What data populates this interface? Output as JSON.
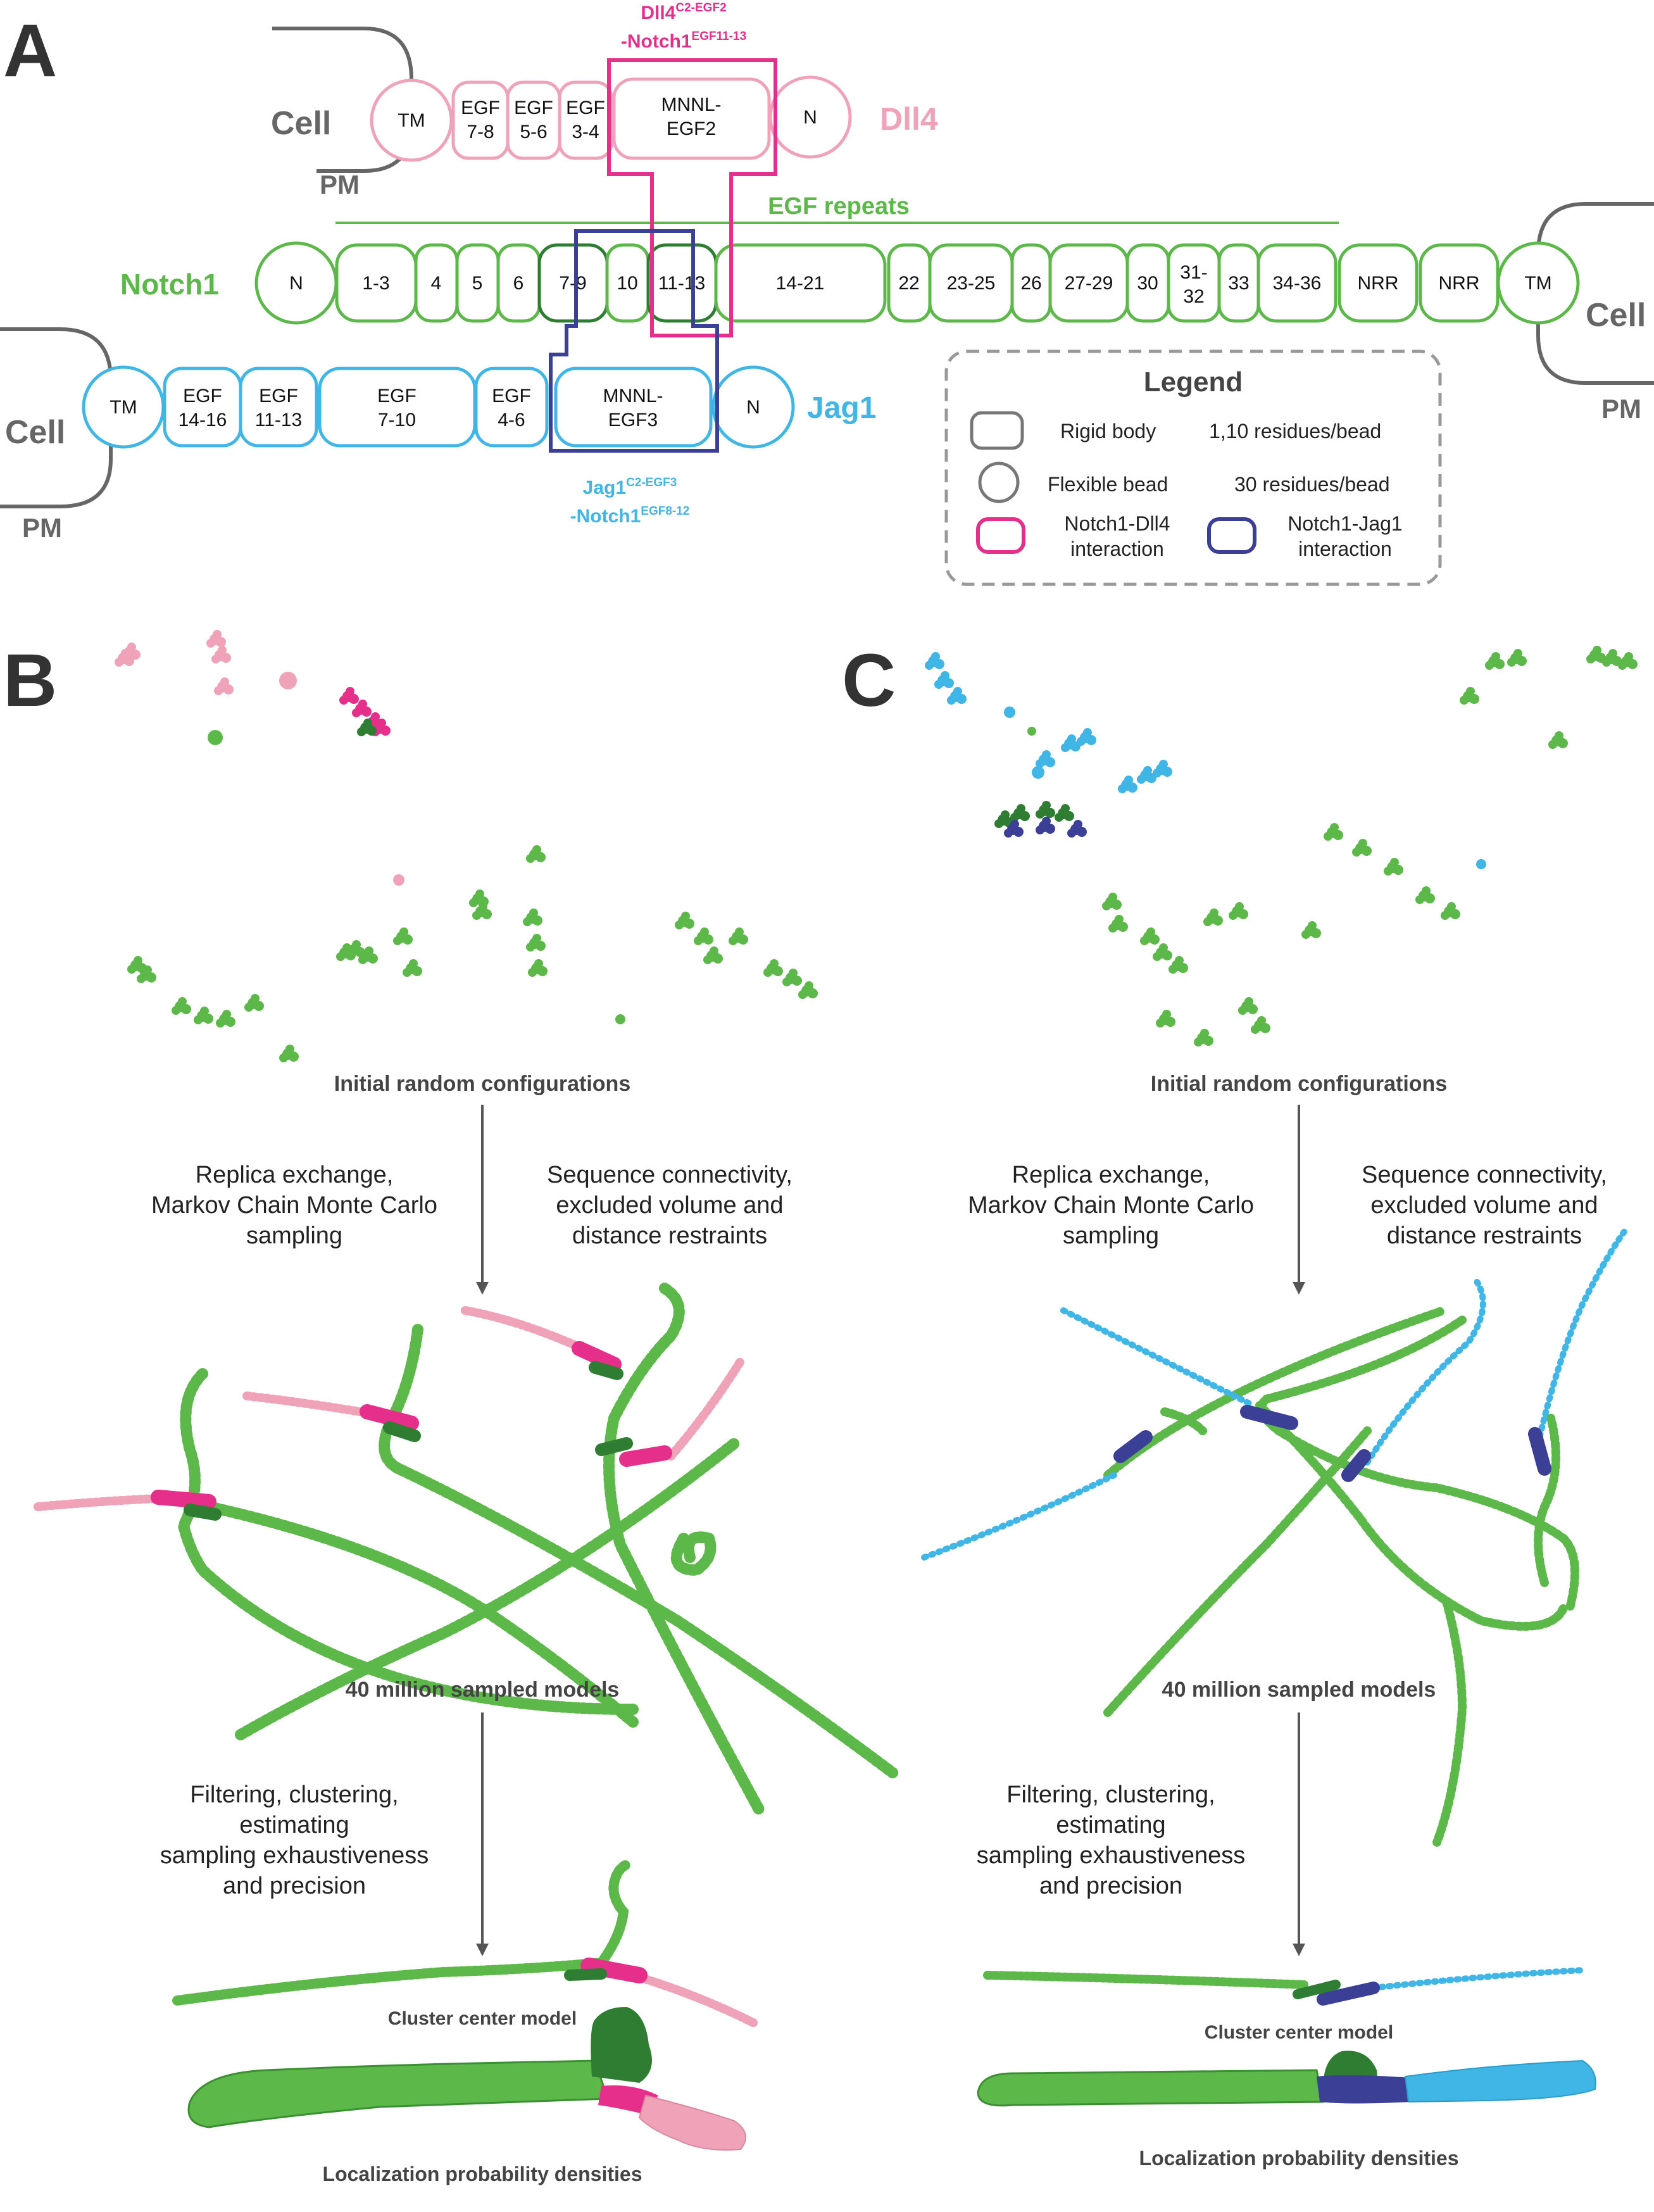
{
  "panels": {
    "a": "A",
    "b": "B",
    "c": "C"
  },
  "colors": {
    "notch": "#5db84a",
    "notch_dark": "#2e7d32",
    "dll4": "#f0a2b8",
    "dll4_dark": "#e62e8b",
    "jag": "#3fb6e6",
    "jag_dark": "#3c3f96",
    "gray": "#666666",
    "legend_dash": "#999999"
  },
  "panel_a": {
    "cell": "Cell",
    "pm": "PM",
    "dll4": {
      "name": "Dll4",
      "domains": [
        "TM",
        "EGF\n7-8",
        "EGF\n5-6",
        "EGF\n3-4",
        "MNNL-\nEGF2",
        "N"
      ]
    },
    "dll4_interaction": {
      "line1": "Dll4",
      "sup1": "C2-EGF2",
      "line2": "-Notch1",
      "sup2": "EGF11-13"
    },
    "egf_repeats": "EGF repeats",
    "notch1": {
      "name": "Notch1",
      "domains": [
        "N",
        "1-3",
        "4",
        "5",
        "6",
        "7-9",
        "10",
        "11-13",
        "14-21",
        "22",
        "23-25",
        "26",
        "27-29",
        "30",
        "31-\n32",
        "33",
        "34-36",
        "NRR",
        "NRR",
        "TM"
      ]
    },
    "jag1": {
      "name": "Jag1",
      "domains": [
        "TM",
        "EGF\n14-16",
        "EGF\n11-13",
        "EGF\n7-10",
        "EGF\n4-6",
        "MNNL-\nEGF3",
        "N"
      ]
    },
    "jag1_interaction": {
      "line1": "Jag1",
      "sup1": "C2-EGF3",
      "line2": "-Notch1",
      "sup2": "EGF8-12"
    },
    "legend": {
      "title": "Legend",
      "rigid_body": "Rigid body",
      "rigid_res": "1,10 residues/bead",
      "flexible_bead": "Flexible bead",
      "flexible_res": "30 residues/bead",
      "dll4_interaction": "Notch1-Dll4\ninteraction",
      "jag1_interaction": "Notch1-Jag1\ninteraction"
    }
  },
  "workflow": {
    "initial": "Initial random configurations",
    "replica": "Replica exchange,\nMarkov Chain Monte Carlo\nsampling",
    "connectivity": "Sequence connectivity,\nexcluded volume and\ndistance restraints",
    "sampled": "40 million sampled models",
    "filtering": "Filtering, clustering,\nestimating\nsampling exhaustiveness\nand precision",
    "cluster": "Cluster center model",
    "densities": "Localization probability densities"
  }
}
